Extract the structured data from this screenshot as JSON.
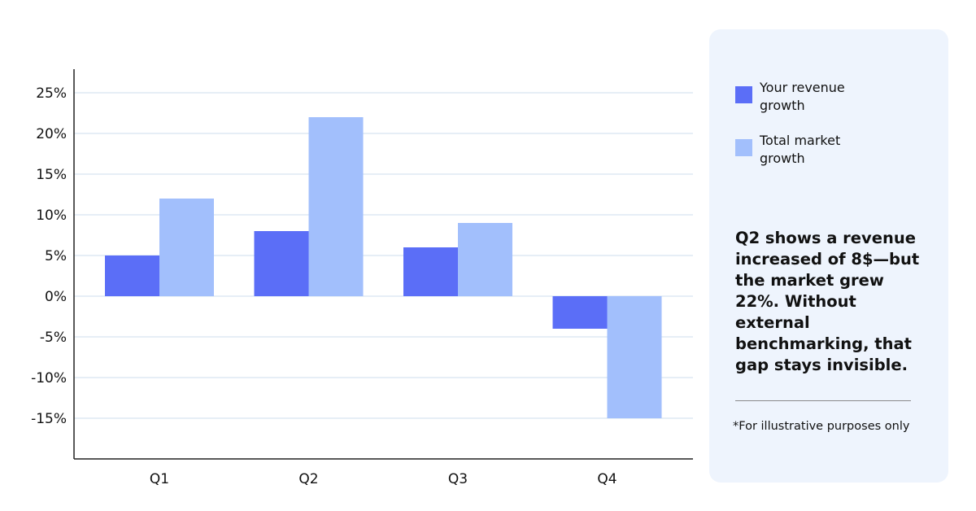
{
  "chart_data": {
    "type": "bar",
    "categories": [
      "Q1",
      "Q2",
      "Q3",
      "Q4"
    ],
    "series": [
      {
        "name": "Your revenue\ngrowth",
        "values": [
          5,
          8,
          6,
          -4
        ],
        "color": "#5b6ef7"
      },
      {
        "name": "Total market\ngrowth",
        "values": [
          12,
          22,
          9,
          -15
        ],
        "color": "#a2bffc"
      }
    ],
    "yticks": [
      25,
      20,
      15,
      10,
      5,
      0,
      -5,
      -10,
      -15
    ],
    "ytick_labels": [
      "25%",
      "20%",
      "15%",
      "10%",
      "5%",
      "0%",
      "-5%",
      "-10%",
      "-15%"
    ],
    "ylim": [
      -20,
      28
    ],
    "grid": true,
    "legend_placement": "right",
    "title": "",
    "xlabel": "",
    "ylabel": ""
  },
  "callout": "Q2 shows a revenue increased of 8$—but the market grew 22%. Without external benchmarking, that gap stays invisible.",
  "footnote": "*For illustrative purposes only",
  "colors": {
    "panel_background": "#eef4fd",
    "gridline": "#dde8f4"
  }
}
